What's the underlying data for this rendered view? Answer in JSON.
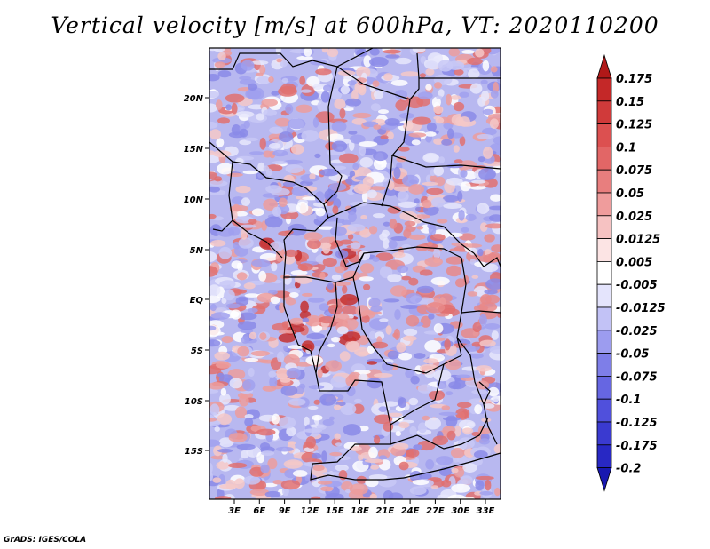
{
  "title": "Vertical velocity [m/s] at 600hPa, VT: 2020110200",
  "credit": "GrADS: IGES/COLA",
  "map": {
    "lat_ticks": [
      "20N",
      "15N",
      "10N",
      "5N",
      "EQ",
      "5S",
      "10S",
      "15S"
    ],
    "lon_ticks": [
      "3E",
      "6E",
      "9E",
      "12E",
      "15E",
      "18E",
      "21E",
      "24E",
      "27E",
      "30E",
      "33E"
    ]
  },
  "colorbar": {
    "labels": [
      "0.175",
      "0.15",
      "0.125",
      "0.1",
      "0.075",
      "0.05",
      "0.025",
      "0.0125",
      "0.005",
      "-0.005",
      "-0.0125",
      "-0.025",
      "-0.05",
      "-0.075",
      "-0.1",
      "-0.125",
      "-0.175",
      "-0.2"
    ],
    "colors": [
      "#b01818",
      "#c42828",
      "#d03a3a",
      "#dc5050",
      "#e26666",
      "#e87e7e",
      "#ef9c9c",
      "#f6c2c2",
      "#fce4e4",
      "#ffffff",
      "#e4e4fc",
      "#c2c2f6",
      "#9c9cef",
      "#7e7ee8",
      "#6666e2",
      "#5050dc",
      "#3a3ad0",
      "#2828c4",
      "#1818b0"
    ]
  }
}
